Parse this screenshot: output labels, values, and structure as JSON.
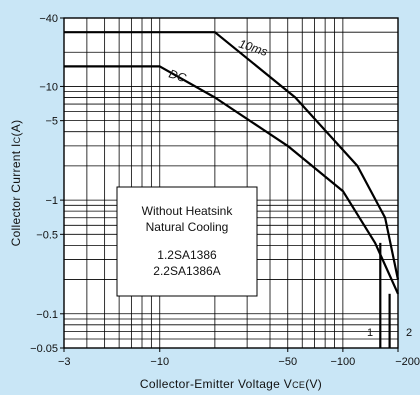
{
  "chart_data": {
    "type": "line",
    "title": "",
    "xlabel": "Collector-Emitter Voltage VCE(V)",
    "ylabel": "Collector Current IC(A)",
    "xlabel_parts": {
      "main": "Collector-Emitter Voltage V",
      "sub": "CE",
      "unit": "(V)"
    },
    "ylabel_parts": {
      "main": "Collector Current I",
      "sub": "C",
      "unit": "(A)"
    },
    "x_scale": "log",
    "y_scale": "log",
    "xlim": [
      -3,
      -200
    ],
    "ylim": [
      -0.05,
      -40
    ],
    "grid": true,
    "x_ticks": [
      {
        "value": -3,
        "label": "−3"
      },
      {
        "value": -10,
        "label": "−10"
      },
      {
        "value": -50,
        "label": "−50"
      },
      {
        "value": -100,
        "label": "−100"
      },
      {
        "value": -200,
        "label": "−200"
      }
    ],
    "y_ticks": [
      {
        "value": -40,
        "label": "−40"
      },
      {
        "value": -10,
        "label": "−10"
      },
      {
        "value": -5,
        "label": "−5"
      },
      {
        "value": -1,
        "label": "−1"
      },
      {
        "value": -0.5,
        "label": "−0.5"
      },
      {
        "value": -0.1,
        "label": "−0.1"
      },
      {
        "value": -0.05,
        "label": "−0.05"
      }
    ],
    "series": [
      {
        "name": "10ms",
        "label_position": "upper-right",
        "values": [
          {
            "x": -3,
            "y": -30
          },
          {
            "x": -20,
            "y": -30
          },
          {
            "x": -55,
            "y": -8
          },
          {
            "x": -120,
            "y": -2
          },
          {
            "x": -170,
            "y": -0.7
          },
          {
            "x": -200,
            "y": -0.2
          }
        ]
      },
      {
        "name": "DC",
        "label_position": "upper-middle",
        "values": [
          {
            "x": -3,
            "y": -15
          },
          {
            "x": -10,
            "y": -15
          },
          {
            "x": -20,
            "y": -8
          },
          {
            "x": -50,
            "y": -3
          },
          {
            "x": -100,
            "y": -1.2
          },
          {
            "x": -150,
            "y": -0.42
          },
          {
            "x": -200,
            "y": -0.15
          }
        ]
      },
      {
        "name": "1",
        "values": [
          {
            "x": -160,
            "y": -0.42
          },
          {
            "x": -160,
            "y": -0.05
          }
        ]
      },
      {
        "name": "2",
        "values": [
          {
            "x": -180,
            "y": -0.15
          },
          {
            "x": -180,
            "y": -0.05
          }
        ]
      }
    ],
    "legend": {
      "placement": "center-left",
      "lines": [
        "Without Heatsink",
        "Natural Cooling",
        "1.2SA1386",
        "2.2SA1386A"
      ]
    },
    "curve_markers": [
      "1",
      "2"
    ]
  }
}
